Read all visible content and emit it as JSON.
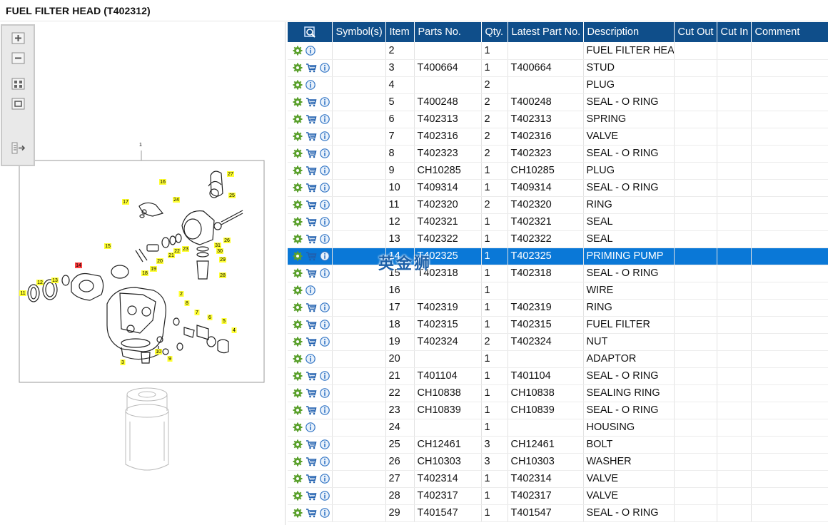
{
  "title": "FUEL FILTER HEAD (T402312)",
  "toolbar": {
    "zoom_in": "zoom-in-icon",
    "zoom_out": "zoom-out-icon",
    "fit": "fit-view-icon",
    "actual": "actual-size-icon",
    "export": "export-icon"
  },
  "diagram": {
    "callouts": [
      "1",
      "2",
      "3",
      "4",
      "5",
      "6",
      "7",
      "8",
      "9",
      "10",
      "11",
      "12",
      "13",
      "14",
      "15",
      "16",
      "17",
      "18",
      "19",
      "20",
      "21",
      "22",
      "23",
      "24",
      "25",
      "26",
      "27",
      "28",
      "29",
      "30",
      "31"
    ],
    "highlighted_callout": "14"
  },
  "table": {
    "search_icon": "search-filter-icon",
    "headers": [
      "Symbol(s)",
      "Item",
      "Parts No.",
      "Qty.",
      "Latest Part No.",
      "Description",
      "Cut Out",
      "Cut In",
      "Comment"
    ],
    "selected_item": "14",
    "rows": [
      {
        "item": "2",
        "part": "",
        "qty": "1",
        "latest": "",
        "desc": "FUEL FILTER HEAD",
        "cart": false
      },
      {
        "item": "3",
        "part": "T400664",
        "qty": "1",
        "latest": "T400664",
        "desc": "STUD",
        "cart": true
      },
      {
        "item": "4",
        "part": "",
        "qty": "2",
        "latest": "",
        "desc": "PLUG",
        "cart": false
      },
      {
        "item": "5",
        "part": "T400248",
        "qty": "2",
        "latest": "T400248",
        "desc": "SEAL - O RING",
        "cart": true
      },
      {
        "item": "6",
        "part": "T402313",
        "qty": "2",
        "latest": "T402313",
        "desc": "SPRING",
        "cart": true
      },
      {
        "item": "7",
        "part": "T402316",
        "qty": "2",
        "latest": "T402316",
        "desc": "VALVE",
        "cart": true
      },
      {
        "item": "8",
        "part": "T402323",
        "qty": "2",
        "latest": "T402323",
        "desc": "SEAL - O RING",
        "cart": true
      },
      {
        "item": "9",
        "part": "CH10285",
        "qty": "1",
        "latest": "CH10285",
        "desc": "PLUG",
        "cart": true
      },
      {
        "item": "10",
        "part": "T409314",
        "qty": "1",
        "latest": "T409314",
        "desc": "SEAL - O RING",
        "cart": true
      },
      {
        "item": "11",
        "part": "T402320",
        "qty": "2",
        "latest": "T402320",
        "desc": "RING",
        "cart": true
      },
      {
        "item": "12",
        "part": "T402321",
        "qty": "1",
        "latest": "T402321",
        "desc": "SEAL",
        "cart": true
      },
      {
        "item": "13",
        "part": "T402322",
        "qty": "1",
        "latest": "T402322",
        "desc": "SEAL",
        "cart": true
      },
      {
        "item": "14",
        "part": "T402325",
        "qty": "1",
        "latest": "T402325",
        "desc": "PRIMING PUMP",
        "cart": true
      },
      {
        "item": "15",
        "part": "T402318",
        "qty": "1",
        "latest": "T402318",
        "desc": "SEAL - O RING",
        "cart": true
      },
      {
        "item": "16",
        "part": "",
        "qty": "1",
        "latest": "",
        "desc": "WIRE",
        "cart": false
      },
      {
        "item": "17",
        "part": "T402319",
        "qty": "1",
        "latest": "T402319",
        "desc": "RING",
        "cart": true
      },
      {
        "item": "18",
        "part": "T402315",
        "qty": "1",
        "latest": "T402315",
        "desc": "FUEL FILTER",
        "cart": true
      },
      {
        "item": "19",
        "part": "T402324",
        "qty": "2",
        "latest": "T402324",
        "desc": "NUT",
        "cart": true
      },
      {
        "item": "20",
        "part": "",
        "qty": "1",
        "latest": "",
        "desc": "ADAPTOR",
        "cart": false
      },
      {
        "item": "21",
        "part": "T401104",
        "qty": "1",
        "latest": "T401104",
        "desc": "SEAL - O RING",
        "cart": true
      },
      {
        "item": "22",
        "part": "CH10838",
        "qty": "1",
        "latest": "CH10838",
        "desc": "SEALING RING",
        "cart": true
      },
      {
        "item": "23",
        "part": "CH10839",
        "qty": "1",
        "latest": "CH10839",
        "desc": "SEAL - O RING",
        "cart": true
      },
      {
        "item": "24",
        "part": "",
        "qty": "1",
        "latest": "",
        "desc": "HOUSING",
        "cart": false
      },
      {
        "item": "25",
        "part": "CH12461",
        "qty": "3",
        "latest": "CH12461",
        "desc": "BOLT",
        "cart": true
      },
      {
        "item": "26",
        "part": "CH10303",
        "qty": "3",
        "latest": "CH10303",
        "desc": "WASHER",
        "cart": true
      },
      {
        "item": "27",
        "part": "T402314",
        "qty": "1",
        "latest": "T402314",
        "desc": "VALVE",
        "cart": true
      },
      {
        "item": "28",
        "part": "T402317",
        "qty": "1",
        "latest": "T402317",
        "desc": "VALVE",
        "cart": true
      },
      {
        "item": "29",
        "part": "T401547",
        "qty": "1",
        "latest": "T401547",
        "desc": "SEAL - O RING",
        "cart": true
      }
    ]
  },
  "watermark": "英金狮",
  "colors": {
    "header": "#0f4e8a",
    "selected": "#0a78d7",
    "callout": "#ffff33",
    "callout_highlight": "#ff4040"
  }
}
